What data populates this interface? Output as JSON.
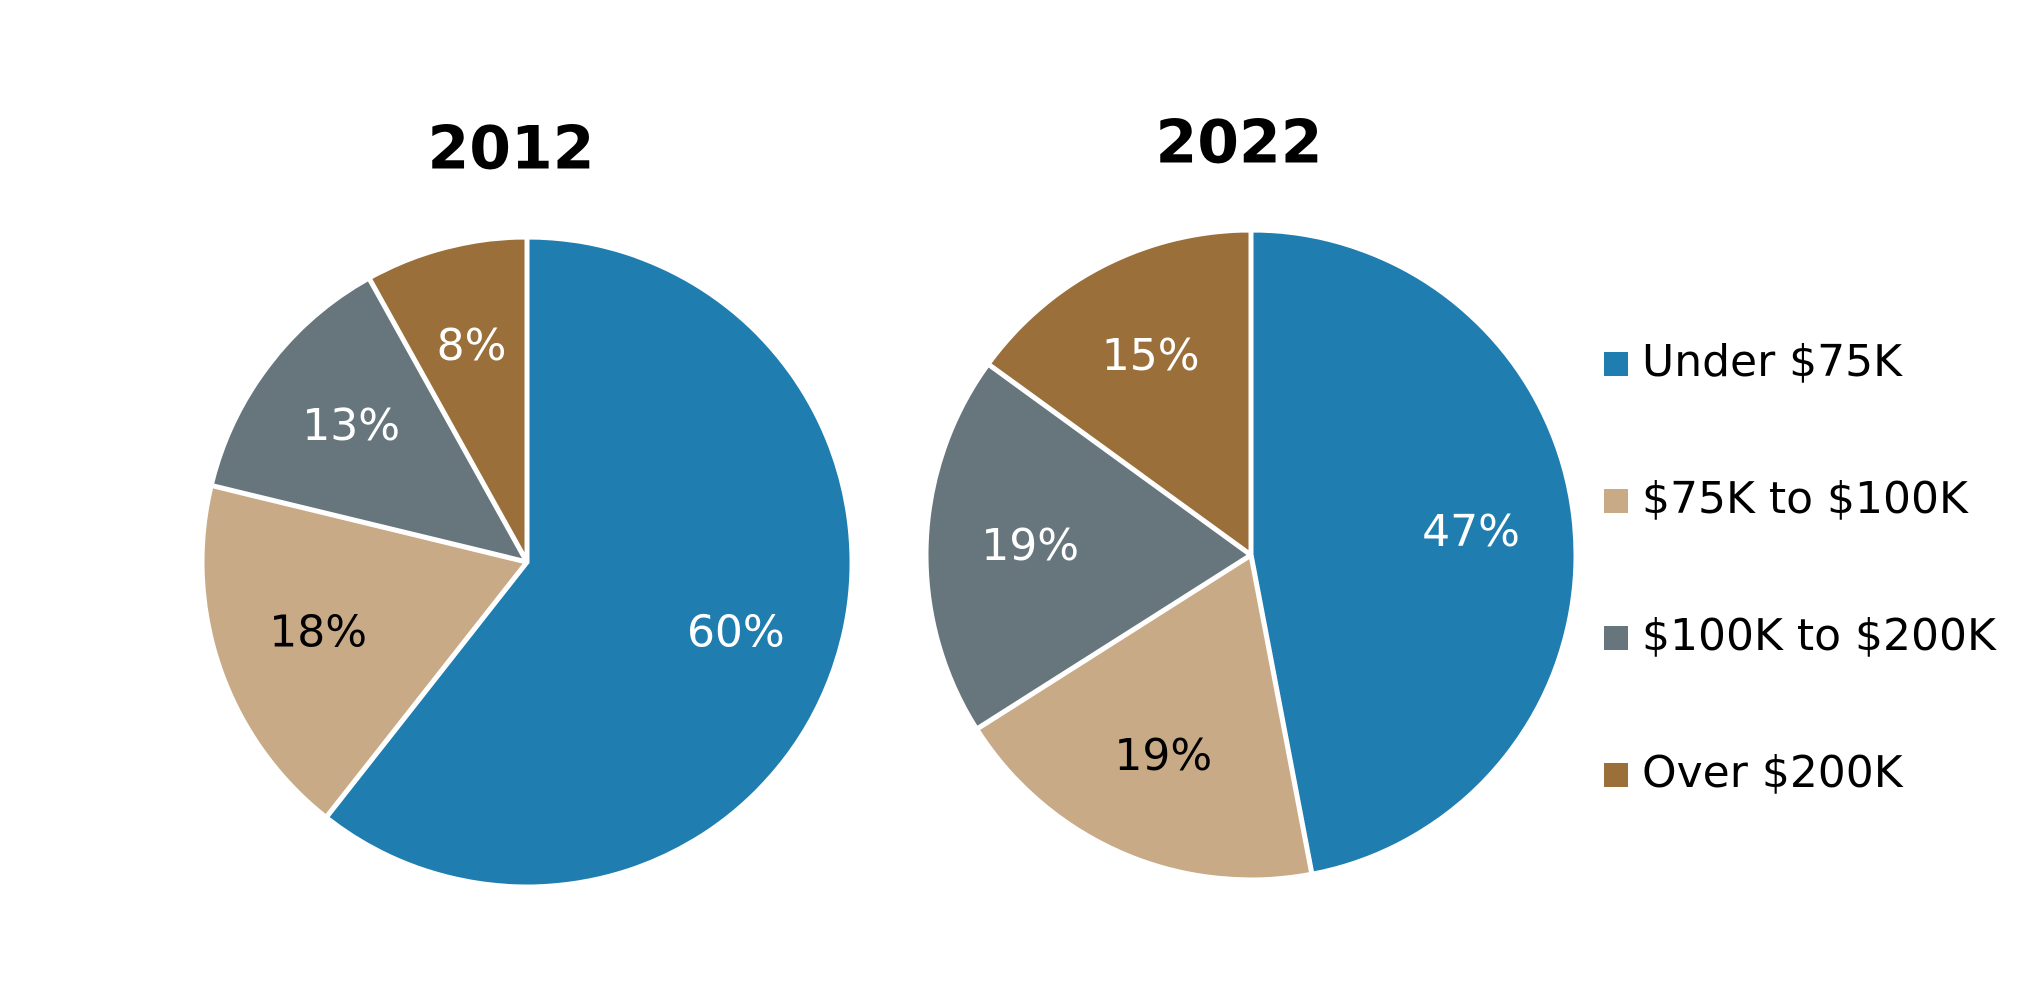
{
  "chart_data": [
    {
      "type": "pie",
      "title": "2012",
      "values": [
        60,
        18,
        13,
        8
      ],
      "value_labels": [
        "60%",
        "18%",
        "13%",
        "8%"
      ]
    },
    {
      "type": "pie",
      "title": "2022",
      "values": [
        47,
        19,
        19,
        15
      ],
      "value_labels": [
        "47%",
        "19%",
        "19%",
        "15%"
      ]
    }
  ],
  "legend": {
    "position": "right",
    "items": [
      {
        "name": "Under $75K",
        "color": "#1f7db0"
      },
      {
        "name": "$75K to $100K",
        "color": "#c8aa86"
      },
      {
        "name": "$100K to $200K",
        "color": "#67767d"
      },
      {
        "name": "Over $200K",
        "color": "#9a6f3a"
      }
    ]
  }
}
